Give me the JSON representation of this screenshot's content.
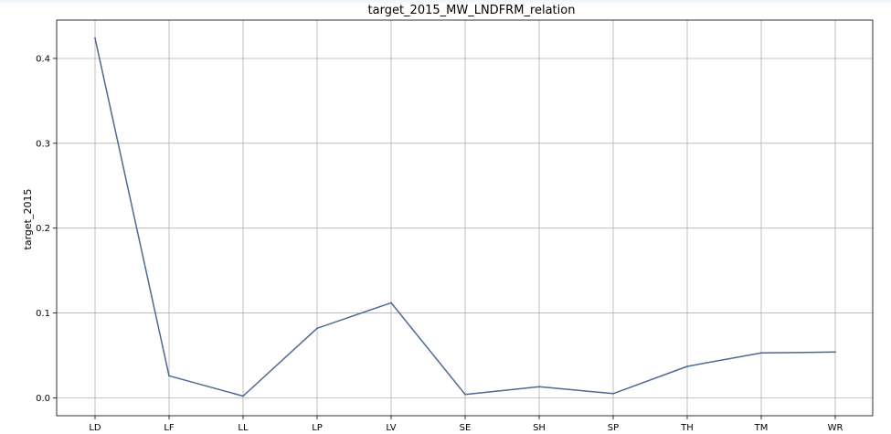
{
  "chart_data": {
    "type": "line",
    "title": "target_2015_MW_LNDFRM_relation",
    "xlabel": "",
    "ylabel": "target_2015",
    "categories": [
      "LD",
      "LF",
      "LL",
      "LP",
      "LV",
      "SE",
      "SH",
      "SP",
      "TH",
      "TM",
      "WR"
    ],
    "series": [
      {
        "values": [
          0.424,
          0.026,
          0.002,
          0.082,
          0.112,
          0.004,
          0.013,
          0.005,
          0.037,
          0.053,
          0.054
        ]
      }
    ],
    "yticks": [
      0.0,
      0.1,
      0.2,
      0.3,
      0.4
    ],
    "ytick_labels": [
      "0.0",
      "0.1",
      "0.2",
      "0.3",
      "0.4"
    ],
    "ylim": [
      -0.0211,
      0.4452
    ],
    "grid": true,
    "colors": {
      "line": "#4c6a92",
      "grid": "#b0b0b0"
    }
  }
}
